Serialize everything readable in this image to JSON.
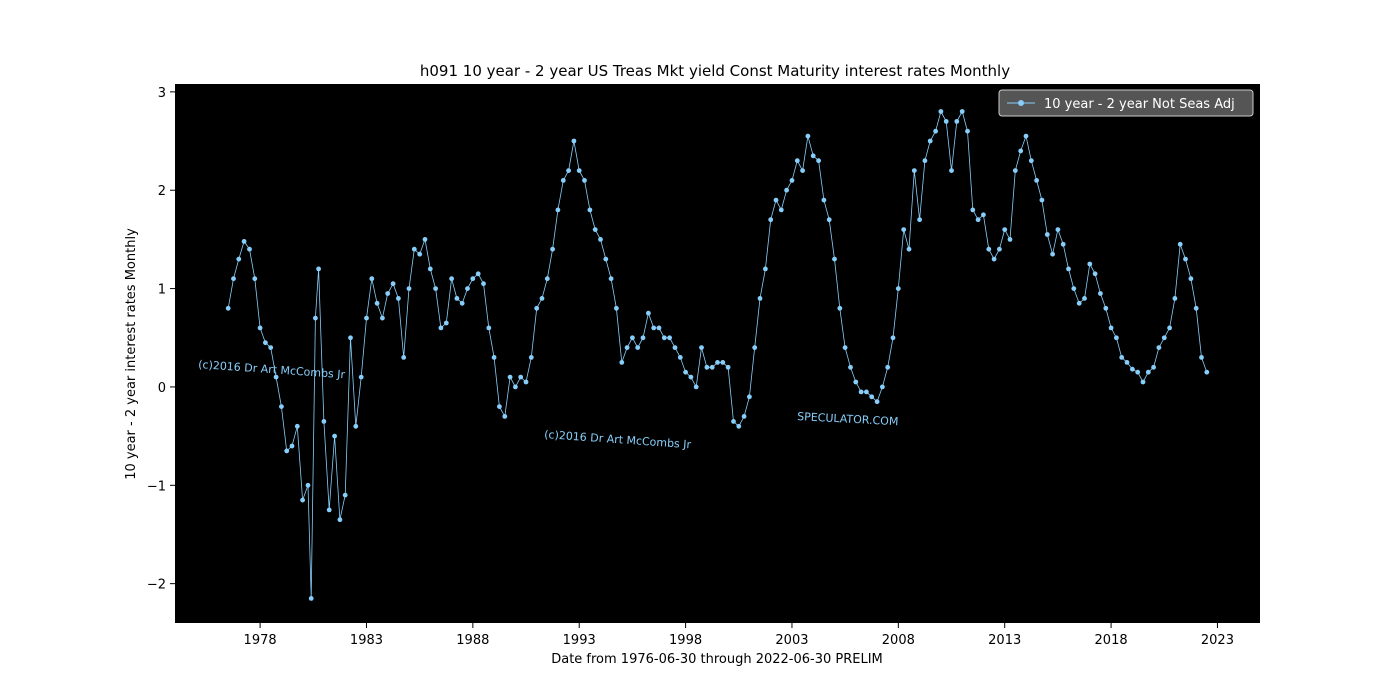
{
  "chart_data": {
    "type": "line",
    "title": "h091 10 year - 2 year US Treas Mkt yield Const Maturity interest rates Monthly",
    "xlabel": "Date from 1976-06-30 through 2022-06-30 PRELIM",
    "ylabel": "10 year - 2 year interest rates Monthly",
    "xlim": [
      1974.0,
      2025.0
    ],
    "ylim": [
      -2.4,
      3.08
    ],
    "x_ticks": [
      1978,
      1983,
      1988,
      1993,
      1998,
      2003,
      2008,
      2013,
      2018,
      2023
    ],
    "y_ticks": [
      -2,
      -1,
      0,
      1,
      2,
      3
    ],
    "background_color": "#000000",
    "line_color": "#87cefa",
    "legend_position": "top-right",
    "series": [
      {
        "name": "10 year - 2 year Not Seas Adj",
        "points": [
          [
            1976.5,
            0.8
          ],
          [
            1976.75,
            1.1
          ],
          [
            1977.0,
            1.3
          ],
          [
            1977.25,
            1.48
          ],
          [
            1977.5,
            1.4
          ],
          [
            1977.75,
            1.1
          ],
          [
            1978.0,
            0.6
          ],
          [
            1978.25,
            0.45
          ],
          [
            1978.5,
            0.4
          ],
          [
            1978.75,
            0.1
          ],
          [
            1979.0,
            -0.2
          ],
          [
            1979.25,
            -0.65
          ],
          [
            1979.5,
            -0.6
          ],
          [
            1979.75,
            -0.4
          ],
          [
            1980.0,
            -1.15
          ],
          [
            1980.25,
            -1.0
          ],
          [
            1980.4,
            -2.15
          ],
          [
            1980.6,
            0.7
          ],
          [
            1980.75,
            1.2
          ],
          [
            1981.0,
            -0.35
          ],
          [
            1981.25,
            -1.25
          ],
          [
            1981.5,
            -0.5
          ],
          [
            1981.75,
            -1.35
          ],
          [
            1982.0,
            -1.1
          ],
          [
            1982.25,
            0.5
          ],
          [
            1982.5,
            -0.4
          ],
          [
            1982.75,
            0.1
          ],
          [
            1983.0,
            0.7
          ],
          [
            1983.25,
            1.1
          ],
          [
            1983.5,
            0.85
          ],
          [
            1983.75,
            0.7
          ],
          [
            1984.0,
            0.95
          ],
          [
            1984.25,
            1.05
          ],
          [
            1984.5,
            0.9
          ],
          [
            1984.75,
            0.3
          ],
          [
            1985.0,
            1.0
          ],
          [
            1985.25,
            1.4
          ],
          [
            1985.5,
            1.35
          ],
          [
            1985.75,
            1.5
          ],
          [
            1986.0,
            1.2
          ],
          [
            1986.25,
            1.0
          ],
          [
            1986.5,
            0.6
          ],
          [
            1986.75,
            0.65
          ],
          [
            1987.0,
            1.1
          ],
          [
            1987.25,
            0.9
          ],
          [
            1987.5,
            0.85
          ],
          [
            1987.75,
            1.0
          ],
          [
            1988.0,
            1.1
          ],
          [
            1988.25,
            1.15
          ],
          [
            1988.5,
            1.05
          ],
          [
            1988.75,
            0.6
          ],
          [
            1989.0,
            0.3
          ],
          [
            1989.25,
            -0.2
          ],
          [
            1989.5,
            -0.3
          ],
          [
            1989.75,
            0.1
          ],
          [
            1990.0,
            0.0
          ],
          [
            1990.25,
            0.1
          ],
          [
            1990.5,
            0.05
          ],
          [
            1990.75,
            0.3
          ],
          [
            1991.0,
            0.8
          ],
          [
            1991.25,
            0.9
          ],
          [
            1991.5,
            1.1
          ],
          [
            1991.75,
            1.4
          ],
          [
            1992.0,
            1.8
          ],
          [
            1992.25,
            2.1
          ],
          [
            1992.5,
            2.2
          ],
          [
            1992.75,
            2.5
          ],
          [
            1993.0,
            2.2
          ],
          [
            1993.25,
            2.1
          ],
          [
            1993.5,
            1.8
          ],
          [
            1993.75,
            1.6
          ],
          [
            1994.0,
            1.5
          ],
          [
            1994.25,
            1.3
          ],
          [
            1994.5,
            1.1
          ],
          [
            1994.75,
            0.8
          ],
          [
            1995.0,
            0.25
          ],
          [
            1995.25,
            0.4
          ],
          [
            1995.5,
            0.5
          ],
          [
            1995.75,
            0.4
          ],
          [
            1996.0,
            0.5
          ],
          [
            1996.25,
            0.75
          ],
          [
            1996.5,
            0.6
          ],
          [
            1996.75,
            0.6
          ],
          [
            1997.0,
            0.5
          ],
          [
            1997.25,
            0.5
          ],
          [
            1997.5,
            0.4
          ],
          [
            1997.75,
            0.3
          ],
          [
            1998.0,
            0.15
          ],
          [
            1998.25,
            0.1
          ],
          [
            1998.5,
            0.0
          ],
          [
            1998.75,
            0.4
          ],
          [
            1999.0,
            0.2
          ],
          [
            1999.25,
            0.2
          ],
          [
            1999.5,
            0.25
          ],
          [
            1999.75,
            0.25
          ],
          [
            2000.0,
            0.2
          ],
          [
            2000.25,
            -0.35
          ],
          [
            2000.5,
            -0.4
          ],
          [
            2000.75,
            -0.3
          ],
          [
            2001.0,
            -0.1
          ],
          [
            2001.25,
            0.4
          ],
          [
            2001.5,
            0.9
          ],
          [
            2001.75,
            1.2
          ],
          [
            2002.0,
            1.7
          ],
          [
            2002.25,
            1.9
          ],
          [
            2002.5,
            1.8
          ],
          [
            2002.75,
            2.0
          ],
          [
            2003.0,
            2.1
          ],
          [
            2003.25,
            2.3
          ],
          [
            2003.5,
            2.2
          ],
          [
            2003.75,
            2.55
          ],
          [
            2004.0,
            2.35
          ],
          [
            2004.25,
            2.3
          ],
          [
            2004.5,
            1.9
          ],
          [
            2004.75,
            1.7
          ],
          [
            2005.0,
            1.3
          ],
          [
            2005.25,
            0.8
          ],
          [
            2005.5,
            0.4
          ],
          [
            2005.75,
            0.2
          ],
          [
            2006.0,
            0.05
          ],
          [
            2006.25,
            -0.05
          ],
          [
            2006.5,
            -0.05
          ],
          [
            2006.75,
            -0.1
          ],
          [
            2007.0,
            -0.15
          ],
          [
            2007.25,
            0.0
          ],
          [
            2007.5,
            0.2
          ],
          [
            2007.75,
            0.5
          ],
          [
            2008.0,
            1.0
          ],
          [
            2008.25,
            1.6
          ],
          [
            2008.5,
            1.4
          ],
          [
            2008.75,
            2.2
          ],
          [
            2009.0,
            1.7
          ],
          [
            2009.25,
            2.3
          ],
          [
            2009.5,
            2.5
          ],
          [
            2009.75,
            2.6
          ],
          [
            2010.0,
            2.8
          ],
          [
            2010.25,
            2.7
          ],
          [
            2010.5,
            2.2
          ],
          [
            2010.75,
            2.7
          ],
          [
            2011.0,
            2.8
          ],
          [
            2011.25,
            2.6
          ],
          [
            2011.5,
            1.8
          ],
          [
            2011.75,
            1.7
          ],
          [
            2012.0,
            1.75
          ],
          [
            2012.25,
            1.4
          ],
          [
            2012.5,
            1.3
          ],
          [
            2012.75,
            1.4
          ],
          [
            2013.0,
            1.6
          ],
          [
            2013.25,
            1.5
          ],
          [
            2013.5,
            2.2
          ],
          [
            2013.75,
            2.4
          ],
          [
            2014.0,
            2.55
          ],
          [
            2014.25,
            2.3
          ],
          [
            2014.5,
            2.1
          ],
          [
            2014.75,
            1.9
          ],
          [
            2015.0,
            1.55
          ],
          [
            2015.25,
            1.35
          ],
          [
            2015.5,
            1.6
          ],
          [
            2015.75,
            1.45
          ],
          [
            2016.0,
            1.2
          ],
          [
            2016.25,
            1.0
          ],
          [
            2016.5,
            0.85
          ],
          [
            2016.75,
            0.9
          ],
          [
            2017.0,
            1.25
          ],
          [
            2017.25,
            1.15
          ],
          [
            2017.5,
            0.95
          ],
          [
            2017.75,
            0.8
          ],
          [
            2018.0,
            0.6
          ],
          [
            2018.25,
            0.5
          ],
          [
            2018.5,
            0.3
          ],
          [
            2018.75,
            0.25
          ],
          [
            2019.0,
            0.18
          ],
          [
            2019.25,
            0.15
          ],
          [
            2019.5,
            0.05
          ],
          [
            2019.75,
            0.15
          ],
          [
            2020.0,
            0.2
          ],
          [
            2020.25,
            0.4
          ],
          [
            2020.5,
            0.5
          ],
          [
            2020.75,
            0.6
          ],
          [
            2021.0,
            0.9
          ],
          [
            2021.25,
            1.45
          ],
          [
            2021.5,
            1.3
          ],
          [
            2021.75,
            1.1
          ],
          [
            2022.0,
            0.8
          ],
          [
            2022.25,
            0.3
          ],
          [
            2022.5,
            0.15
          ]
        ]
      }
    ],
    "watermarks": [
      "(c)2016 Dr Art McCombs Jr",
      "(c)2016 Dr Art McCombs Jr",
      "SPECULATOR.COM"
    ]
  }
}
